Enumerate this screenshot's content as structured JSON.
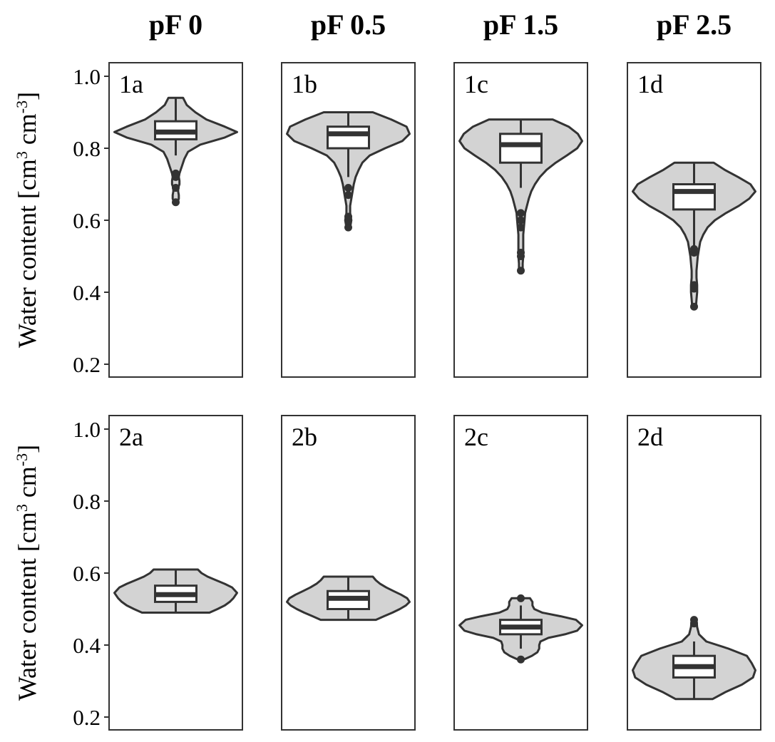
{
  "chart_data": {
    "type": "violin",
    "column_titles": [
      "pF 0",
      "pF 0.5",
      "pF 1.5",
      "pF 2.5"
    ],
    "ylabel": "Water content [cm",
    "ylabel_sup1": "3",
    "ylabel_mid": " cm",
    "ylabel_sup2": "-3",
    "ylabel_end": "]",
    "ylim": [
      0.16,
      1.04
    ],
    "yticks": [
      "0.2",
      "0.4",
      "0.6",
      "0.8",
      "1.0"
    ],
    "ytick_values": [
      0.2,
      0.4,
      0.6,
      0.8,
      1.0
    ],
    "colors": {
      "violin_fill": "#d3d3d3",
      "outline": "#333333",
      "box_fill": "#ffffff"
    },
    "panels": [
      {
        "label": "1a",
        "row": 0,
        "col": 0,
        "min": 0.65,
        "max": 0.94,
        "q1": 0.825,
        "median": 0.845,
        "q3": 0.875,
        "whisker_low": 0.78,
        "whisker_high": 0.94,
        "outliers": [
          0.65,
          0.69,
          0.72,
          0.73
        ],
        "density": [
          [
            0.65,
            0.03
          ],
          [
            0.66,
            0.05
          ],
          [
            0.67,
            0.05
          ],
          [
            0.68,
            0.04
          ],
          [
            0.69,
            0.04
          ],
          [
            0.7,
            0.06
          ],
          [
            0.71,
            0.06
          ],
          [
            0.72,
            0.05
          ],
          [
            0.73,
            0.06
          ],
          [
            0.74,
            0.08
          ],
          [
            0.75,
            0.1
          ],
          [
            0.77,
            0.14
          ],
          [
            0.79,
            0.2
          ],
          [
            0.81,
            0.4
          ],
          [
            0.83,
            0.8
          ],
          [
            0.845,
            1.0
          ],
          [
            0.86,
            0.8
          ],
          [
            0.88,
            0.5
          ],
          [
            0.9,
            0.32
          ],
          [
            0.92,
            0.18
          ],
          [
            0.94,
            0.12
          ]
        ]
      },
      {
        "label": "1b",
        "row": 0,
        "col": 1,
        "min": 0.58,
        "max": 0.9,
        "q1": 0.8,
        "median": 0.84,
        "q3": 0.86,
        "whisker_low": 0.72,
        "whisker_high": 0.9,
        "outliers": [
          0.58,
          0.6,
          0.61,
          0.67,
          0.69
        ],
        "density": [
          [
            0.58,
            0.03
          ],
          [
            0.6,
            0.05
          ],
          [
            0.62,
            0.03
          ],
          [
            0.64,
            0.03
          ],
          [
            0.66,
            0.05
          ],
          [
            0.68,
            0.07
          ],
          [
            0.7,
            0.09
          ],
          [
            0.72,
            0.12
          ],
          [
            0.74,
            0.17
          ],
          [
            0.76,
            0.23
          ],
          [
            0.78,
            0.35
          ],
          [
            0.8,
            0.6
          ],
          [
            0.82,
            0.88
          ],
          [
            0.84,
            1.0
          ],
          [
            0.86,
            0.95
          ],
          [
            0.88,
            0.7
          ],
          [
            0.9,
            0.4
          ]
        ]
      },
      {
        "label": "1c",
        "row": 0,
        "col": 2,
        "min": 0.46,
        "max": 0.88,
        "q1": 0.76,
        "median": 0.81,
        "q3": 0.84,
        "whisker_low": 0.69,
        "whisker_high": 0.88,
        "outliers": [
          0.46,
          0.5,
          0.51,
          0.58,
          0.6,
          0.62
        ],
        "density": [
          [
            0.46,
            0.03
          ],
          [
            0.48,
            0.03
          ],
          [
            0.5,
            0.04
          ],
          [
            0.52,
            0.04
          ],
          [
            0.54,
            0.04
          ],
          [
            0.56,
            0.04
          ],
          [
            0.58,
            0.05
          ],
          [
            0.6,
            0.06
          ],
          [
            0.62,
            0.07
          ],
          [
            0.64,
            0.1
          ],
          [
            0.66,
            0.13
          ],
          [
            0.68,
            0.17
          ],
          [
            0.7,
            0.23
          ],
          [
            0.72,
            0.31
          ],
          [
            0.74,
            0.42
          ],
          [
            0.76,
            0.57
          ],
          [
            0.78,
            0.75
          ],
          [
            0.8,
            0.92
          ],
          [
            0.82,
            1.0
          ],
          [
            0.84,
            0.93
          ],
          [
            0.86,
            0.78
          ],
          [
            0.88,
            0.52
          ]
        ]
      },
      {
        "label": "1d",
        "row": 0,
        "col": 3,
        "min": 0.36,
        "max": 0.76,
        "q1": 0.63,
        "median": 0.68,
        "q3": 0.7,
        "whisker_low": 0.52,
        "whisker_high": 0.76,
        "outliers": [
          0.36,
          0.41,
          0.42,
          0.51,
          0.52
        ],
        "density": [
          [
            0.36,
            0.03
          ],
          [
            0.38,
            0.04
          ],
          [
            0.4,
            0.05
          ],
          [
            0.42,
            0.05
          ],
          [
            0.44,
            0.04
          ],
          [
            0.46,
            0.04
          ],
          [
            0.48,
            0.05
          ],
          [
            0.5,
            0.06
          ],
          [
            0.52,
            0.08
          ],
          [
            0.54,
            0.1
          ],
          [
            0.56,
            0.15
          ],
          [
            0.58,
            0.22
          ],
          [
            0.6,
            0.34
          ],
          [
            0.62,
            0.52
          ],
          [
            0.64,
            0.73
          ],
          [
            0.66,
            0.9
          ],
          [
            0.68,
            1.0
          ],
          [
            0.7,
            0.92
          ],
          [
            0.72,
            0.72
          ],
          [
            0.74,
            0.5
          ],
          [
            0.76,
            0.32
          ]
        ]
      },
      {
        "label": "2a",
        "row": 1,
        "col": 0,
        "min": 0.49,
        "max": 0.61,
        "q1": 0.52,
        "median": 0.54,
        "q3": 0.565,
        "whisker_low": 0.49,
        "whisker_high": 0.61,
        "outliers": [],
        "density": [
          [
            0.49,
            0.55
          ],
          [
            0.5,
            0.68
          ],
          [
            0.51,
            0.8
          ],
          [
            0.52,
            0.88
          ],
          [
            0.53,
            0.94
          ],
          [
            0.545,
            1.0
          ],
          [
            0.56,
            0.92
          ],
          [
            0.57,
            0.8
          ],
          [
            0.58,
            0.66
          ],
          [
            0.59,
            0.52
          ],
          [
            0.6,
            0.42
          ],
          [
            0.61,
            0.36
          ]
        ]
      },
      {
        "label": "2b",
        "row": 1,
        "col": 1,
        "min": 0.47,
        "max": 0.59,
        "q1": 0.5,
        "median": 0.53,
        "q3": 0.55,
        "whisker_low": 0.47,
        "whisker_high": 0.59,
        "outliers": [],
        "density": [
          [
            0.47,
            0.45
          ],
          [
            0.48,
            0.58
          ],
          [
            0.49,
            0.72
          ],
          [
            0.5,
            0.84
          ],
          [
            0.51,
            0.94
          ],
          [
            0.52,
            1.0
          ],
          [
            0.53,
            0.96
          ],
          [
            0.54,
            0.86
          ],
          [
            0.55,
            0.74
          ],
          [
            0.56,
            0.62
          ],
          [
            0.57,
            0.52
          ],
          [
            0.58,
            0.45
          ],
          [
            0.59,
            0.4
          ]
        ]
      },
      {
        "label": "2c",
        "row": 1,
        "col": 2,
        "min": 0.36,
        "max": 0.53,
        "q1": 0.43,
        "median": 0.45,
        "q3": 0.47,
        "whisker_low": 0.39,
        "whisker_high": 0.51,
        "outliers": [
          0.36,
          0.53
        ],
        "density": [
          [
            0.36,
            0.05
          ],
          [
            0.37,
            0.18
          ],
          [
            0.38,
            0.27
          ],
          [
            0.39,
            0.3
          ],
          [
            0.4,
            0.3
          ],
          [
            0.41,
            0.32
          ],
          [
            0.42,
            0.45
          ],
          [
            0.43,
            0.72
          ],
          [
            0.44,
            0.92
          ],
          [
            0.455,
            1.0
          ],
          [
            0.47,
            0.9
          ],
          [
            0.48,
            0.65
          ],
          [
            0.49,
            0.35
          ],
          [
            0.5,
            0.22
          ],
          [
            0.51,
            0.19
          ],
          [
            0.52,
            0.19
          ],
          [
            0.53,
            0.15
          ]
        ]
      },
      {
        "label": "2d",
        "row": 1,
        "col": 3,
        "min": 0.25,
        "max": 0.47,
        "q1": 0.31,
        "median": 0.34,
        "q3": 0.37,
        "whisker_low": 0.25,
        "whisker_high": 0.41,
        "outliers": [
          0.46,
          0.47
        ],
        "density": [
          [
            0.25,
            0.3
          ],
          [
            0.27,
            0.52
          ],
          [
            0.29,
            0.78
          ],
          [
            0.31,
            0.96
          ],
          [
            0.33,
            1.0
          ],
          [
            0.35,
            0.94
          ],
          [
            0.37,
            0.86
          ],
          [
            0.39,
            0.56
          ],
          [
            0.41,
            0.2
          ],
          [
            0.43,
            0.08
          ],
          [
            0.45,
            0.05
          ],
          [
            0.47,
            0.04
          ]
        ]
      }
    ]
  }
}
